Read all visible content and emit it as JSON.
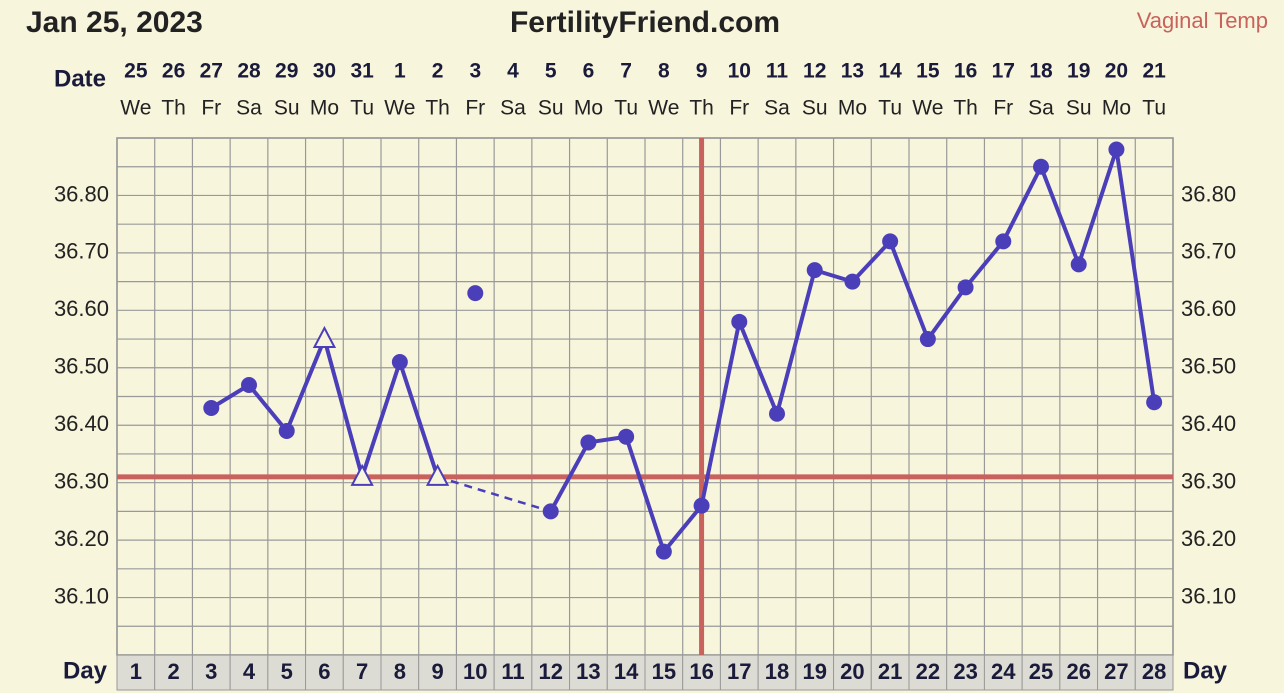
{
  "chart_data": {
    "type": "line",
    "title": "Jan 25, 2023",
    "site": "FertilityFriend.com",
    "subtitle": "Vaginal Temp",
    "date_label": "Date",
    "day_label": "Day",
    "categories": [
      1,
      2,
      3,
      4,
      5,
      6,
      7,
      8,
      9,
      10,
      11,
      12,
      13,
      14,
      15,
      16,
      17,
      18,
      19,
      20,
      21,
      22,
      23,
      24,
      25,
      26,
      27,
      28
    ],
    "dates": [
      "25",
      "26",
      "27",
      "28",
      "29",
      "30",
      "31",
      "1",
      "2",
      "3",
      "4",
      "5",
      "6",
      "7",
      "8",
      "9",
      "10",
      "11",
      "12",
      "13",
      "14",
      "15",
      "16",
      "17",
      "18",
      "19",
      "20",
      "21"
    ],
    "weekdays": [
      "We",
      "Th",
      "Fr",
      "Sa",
      "Su",
      "Mo",
      "Tu",
      "We",
      "Th",
      "Fr",
      "Sa",
      "Su",
      "Mo",
      "Tu",
      "We",
      "Th",
      "Fr",
      "Sa",
      "Su",
      "Mo",
      "Tu",
      "We",
      "Th",
      "Fr",
      "Sa",
      "Su",
      "Mo",
      "Tu"
    ],
    "series": [
      {
        "color": "#4b3fb9",
        "bridge_gaps": "dashed",
        "values": [
          null,
          null,
          36.43,
          36.47,
          36.39,
          36.55,
          36.31,
          36.51,
          36.31,
          null,
          null,
          36.25,
          36.37,
          36.38,
          36.18,
          36.26,
          36.58,
          36.42,
          36.67,
          36.65,
          36.72,
          36.55,
          36.64,
          36.72,
          36.85,
          36.68,
          36.88,
          36.44
        ],
        "markers": [
          null,
          null,
          "circle",
          "circle",
          "circle",
          "triangle",
          "triangle",
          "circle",
          "triangle",
          null,
          null,
          "circle",
          "circle",
          "circle",
          "circle",
          "circle",
          "circle",
          "circle",
          "circle",
          "circle",
          "circle",
          "circle",
          "circle",
          "circle",
          "circle",
          "circle",
          "circle",
          "circle"
        ]
      },
      {
        "color": "#4b3fb9",
        "values": [
          null,
          null,
          null,
          null,
          null,
          null,
          null,
          null,
          null,
          36.63,
          null,
          null,
          null,
          null,
          null,
          null,
          null,
          null,
          null,
          null,
          null,
          null,
          null,
          null,
          null,
          null,
          null,
          null
        ],
        "markers": [
          null,
          null,
          null,
          null,
          null,
          null,
          null,
          null,
          null,
          "circle",
          null,
          null,
          null,
          null,
          null,
          null,
          null,
          null,
          null,
          null,
          null,
          null,
          null,
          null,
          null,
          null,
          null,
          null
        ]
      }
    ],
    "coverline": 36.31,
    "ovulation_day": 16,
    "line_color": "#c8625c",
    "ylim": [
      36.0,
      36.9
    ],
    "yticks": [
      {
        "value": 36.1,
        "label": "36.10"
      },
      {
        "value": 36.2,
        "label": "36.20"
      },
      {
        "value": 36.3,
        "label": "36.30"
      },
      {
        "value": 36.4,
        "label": "36.40"
      },
      {
        "value": 36.5,
        "label": "36.50"
      },
      {
        "value": 36.6,
        "label": "36.60"
      },
      {
        "value": 36.7,
        "label": "36.70"
      },
      {
        "value": 36.8,
        "label": "36.80"
      }
    ],
    "grid_y": [
      36.0,
      36.05,
      36.1,
      36.15,
      36.2,
      36.25,
      36.3,
      36.35,
      36.4,
      36.45,
      36.5,
      36.55,
      36.6,
      36.65,
      36.7,
      36.75,
      36.8,
      36.85,
      36.9
    ]
  }
}
